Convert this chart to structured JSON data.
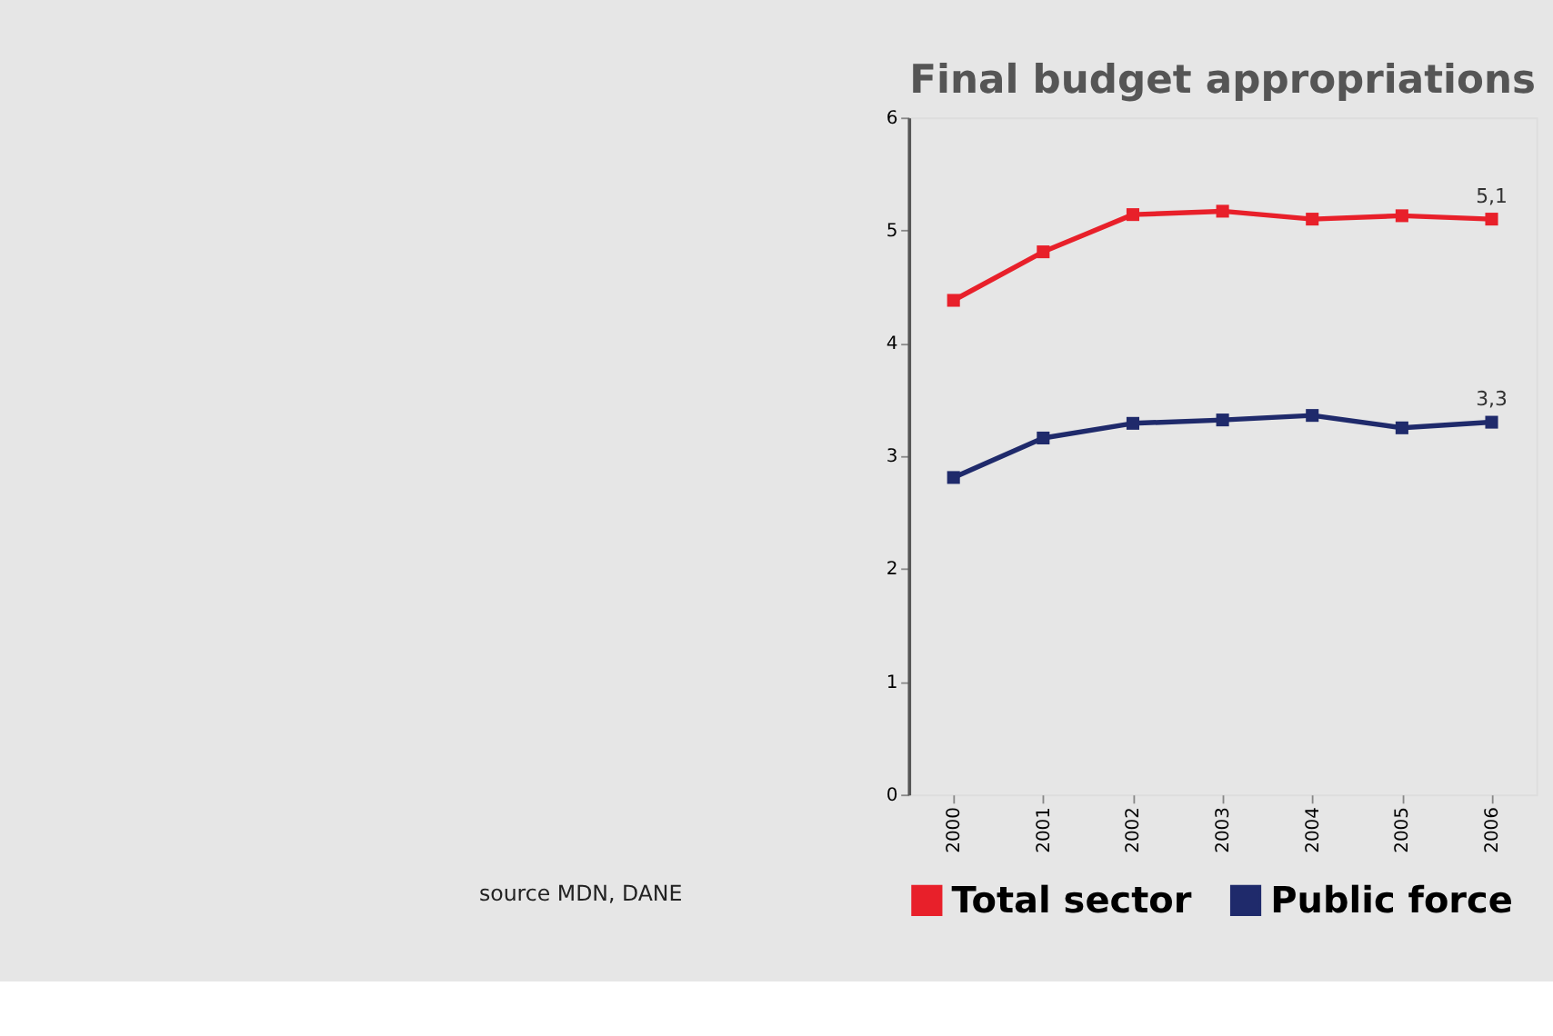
{
  "chart_data": {
    "type": "line",
    "title": "Final budget appropriations",
    "categories": [
      "2000",
      "2001",
      "2002",
      "2003",
      "2004",
      "2005",
      "2006"
    ],
    "series": [
      {
        "name": "Total sector",
        "color": "#e8202a",
        "values": [
          4.38,
          4.81,
          5.14,
          5.17,
          5.1,
          5.13,
          5.1
        ],
        "value_labels": [
          null,
          null,
          null,
          null,
          null,
          null,
          "5,1"
        ]
      },
      {
        "name": "Public force",
        "color": "#1f2a6b",
        "values": [
          2.81,
          3.16,
          3.29,
          3.32,
          3.36,
          3.25,
          3.3
        ],
        "value_labels": [
          null,
          null,
          null,
          null,
          null,
          null,
          "3,3"
        ]
      }
    ],
    "ylim": [
      0,
      6
    ],
    "yticks": [
      0,
      1,
      2,
      3,
      4,
      5,
      6
    ],
    "grid": false,
    "legend": "bottom",
    "marker": "square",
    "line_style": "solid",
    "annotations": [
      "source MDN, DANE"
    ]
  }
}
